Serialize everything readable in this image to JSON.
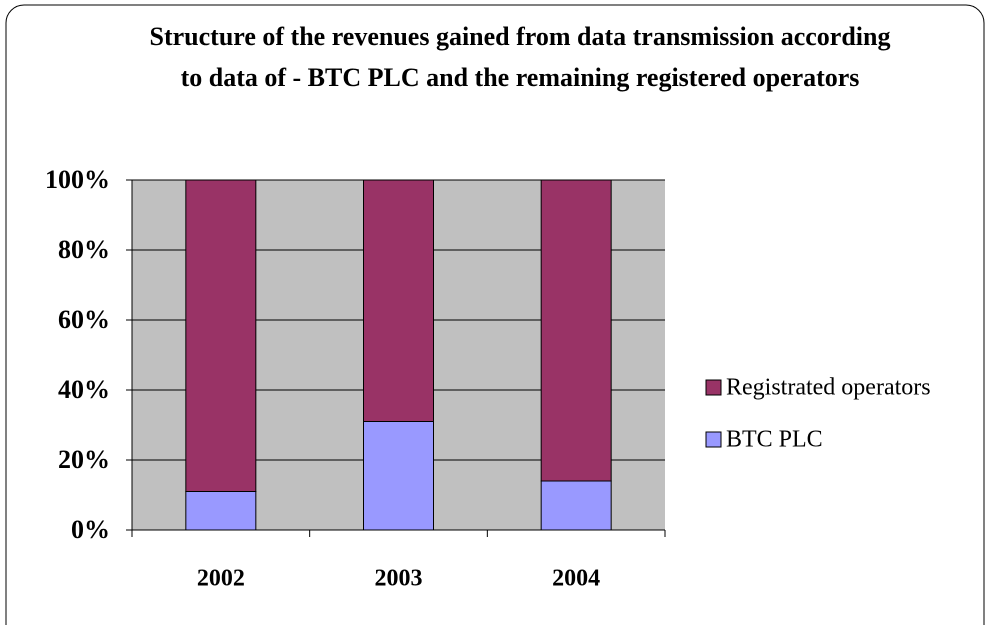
{
  "chart_data": {
    "type": "stacked_bar_percent",
    "title": "Structure of the revenues gained from data transmission according to data of - BTC PLC and the remaining registered operators",
    "categories": [
      "2002",
      "2003",
      "2004"
    ],
    "series": [
      {
        "name": "BTC PLC",
        "color": "#9999ff",
        "values": [
          11,
          31,
          14
        ]
      },
      {
        "name": "Registrated operators",
        "color": "#993366",
        "values": [
          89,
          69,
          86
        ]
      }
    ],
    "ylim": [
      0,
      100
    ],
    "yticks": [
      {
        "value": 0,
        "label": "0%"
      },
      {
        "value": 20,
        "label": "20%"
      },
      {
        "value": 40,
        "label": "40%"
      },
      {
        "value": 60,
        "label": "60%"
      },
      {
        "value": 80,
        "label": "80%"
      },
      {
        "value": 100,
        "label": "100%"
      }
    ],
    "grid": true,
    "legend": "right"
  }
}
